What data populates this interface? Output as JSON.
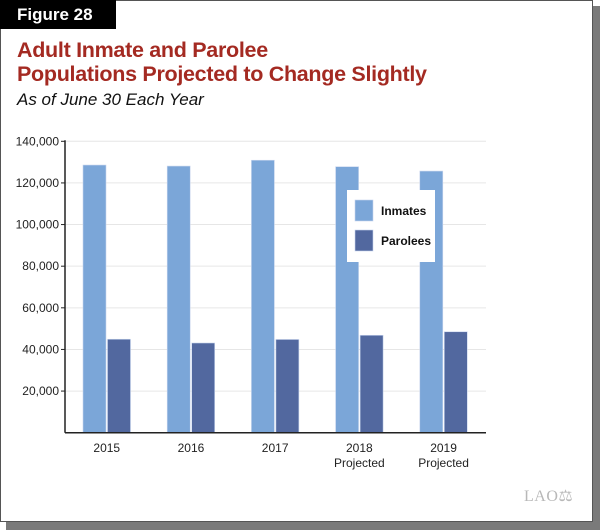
{
  "figure_label": "Figure 28",
  "logo_text": "LAO",
  "colors": {
    "inmates": "#7ba6d8",
    "parolees": "#52689f",
    "title": "#a42a22"
  },
  "chart_data": {
    "type": "bar",
    "title_line1": "Adult Inmate and Parolee",
    "title_line2": "Populations Projected to Change Slightly",
    "subtitle": "As of June 30 Each Year",
    "categories": [
      [
        "2015",
        ""
      ],
      [
        "2016",
        ""
      ],
      [
        "2017",
        ""
      ],
      [
        "2018",
        "Projected"
      ],
      [
        "2019",
        "Projected"
      ]
    ],
    "series": [
      {
        "name": "Inmates",
        "values": [
          128600,
          128100,
          130900,
          127800,
          125700
        ]
      },
      {
        "name": "Parolees",
        "values": [
          44900,
          43100,
          44800,
          46800,
          48500
        ]
      }
    ],
    "yticks": [
      "20,000",
      "40,000",
      "60,000",
      "80,000",
      "100,000",
      "120,000",
      "140,000"
    ],
    "ylim": [
      0,
      140000
    ],
    "grid": true,
    "legend_placement": "top-right"
  }
}
